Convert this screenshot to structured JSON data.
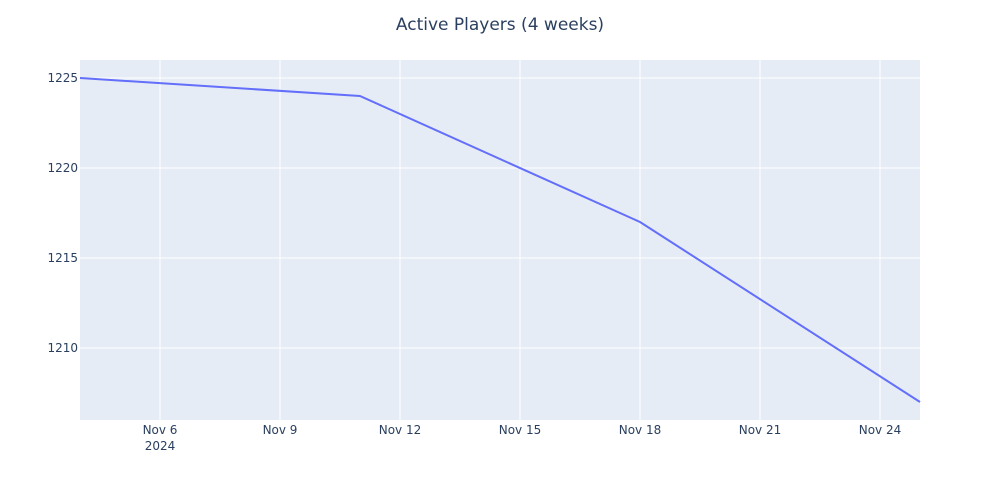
{
  "chart_data": {
    "type": "line",
    "title": "Active Players (4 weeks)",
    "xlabel": "",
    "ylabel": "",
    "x_axis_type": "date",
    "xlim": [
      "2024-11-04",
      "2024-11-25"
    ],
    "ylim": [
      1206,
      1226
    ],
    "x_ticks": [
      {
        "date": "2024-11-06",
        "label": "Nov 6",
        "sublabel": "2024"
      },
      {
        "date": "2024-11-09",
        "label": "Nov 9"
      },
      {
        "date": "2024-11-12",
        "label": "Nov 12"
      },
      {
        "date": "2024-11-15",
        "label": "Nov 15"
      },
      {
        "date": "2024-11-18",
        "label": "Nov 18"
      },
      {
        "date": "2024-11-21",
        "label": "Nov 21"
      },
      {
        "date": "2024-11-24",
        "label": "Nov 24"
      }
    ],
    "y_ticks": [
      1210,
      1215,
      1220,
      1225
    ],
    "grid": true,
    "colors": {
      "background": "#e5ecf6",
      "grid": "#ffffff",
      "line": "#636efa",
      "text": "#2a3f5f"
    },
    "series": [
      {
        "x": [
          "2024-11-04",
          "2024-11-11",
          "2024-11-18",
          "2024-11-25"
        ],
        "y": [
          1225,
          1224,
          1217,
          1207
        ]
      }
    ]
  }
}
